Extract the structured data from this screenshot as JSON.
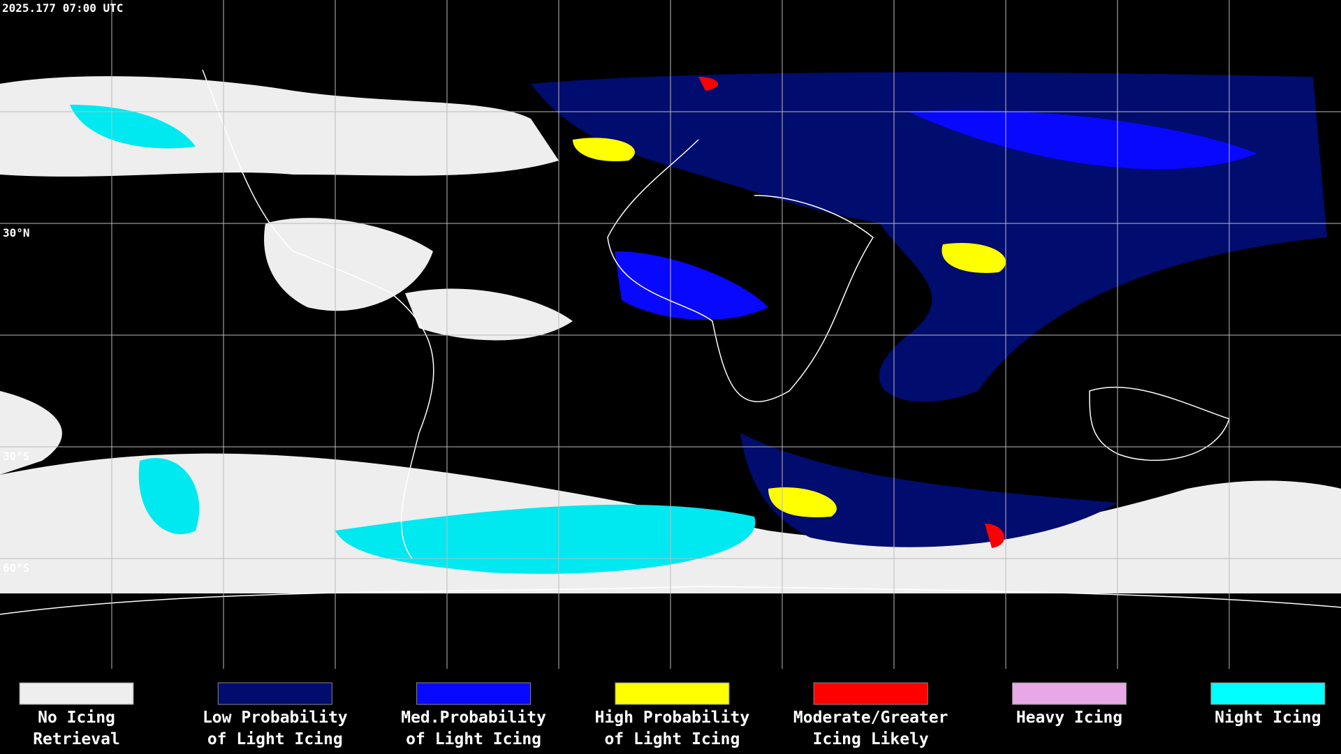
{
  "header": {
    "timestamp": "2025.177 07:00 UTC"
  },
  "map": {
    "latitude_labels": [
      "30°N",
      "30°S",
      "60°S"
    ]
  },
  "legend": {
    "items": [
      {
        "color": "#eeeeee",
        "label": [
          "No Icing",
          "Retrieval"
        ]
      },
      {
        "color": "#000c6e",
        "label": [
          "Low Probability",
          "of Light Icing"
        ]
      },
      {
        "color": "#0808ff",
        "label": [
          "Med.Probability",
          "of Light Icing"
        ]
      },
      {
        "color": "#ffff00",
        "label": [
          "High Probability",
          "of Light Icing"
        ]
      },
      {
        "color": "#ff0000",
        "label": [
          "Moderate/Greater",
          "Icing Likely"
        ]
      },
      {
        "color": "#e8a8e8",
        "label": [
          "Heavy Icing",
          ""
        ]
      },
      {
        "color": "#00ffff",
        "label": [
          "Night Icing",
          ""
        ]
      }
    ]
  }
}
